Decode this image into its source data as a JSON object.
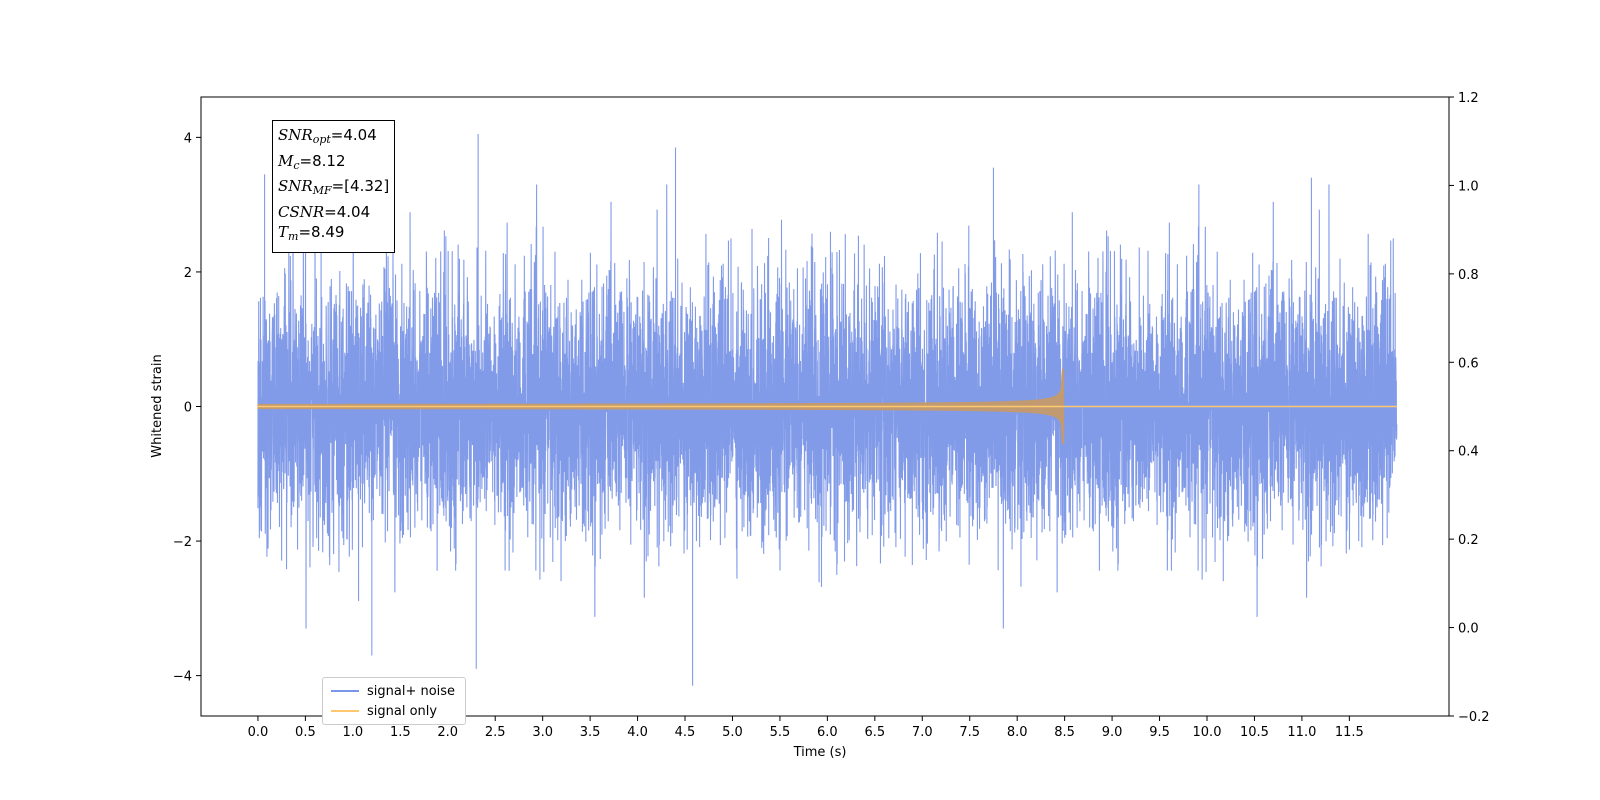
{
  "chart_data": {
    "type": "line",
    "title": "",
    "xlabel": "Time (s)",
    "ylabel": "Whitened strain",
    "xlim": [
      -0.6,
      12.55
    ],
    "ylim": [
      -4.6,
      4.6
    ],
    "y2lim": [
      -0.2,
      1.2
    ],
    "xticks": [
      "0.0",
      "0.5",
      "1.0",
      "1.5",
      "2.0",
      "2.5",
      "3.0",
      "3.5",
      "4.0",
      "4.5",
      "5.0",
      "5.5",
      "6.0",
      "6.5",
      "7.0",
      "7.5",
      "8.0",
      "8.5",
      "9.0",
      "9.5",
      "10.0",
      "10.5",
      "11.0",
      "11.5"
    ],
    "yticks": [
      "4",
      "2",
      "0",
      "−2",
      "−4"
    ],
    "y2ticks": [
      "1.2",
      "1.0",
      "0.8",
      "0.6",
      "0.4",
      "0.2",
      "0.0",
      "−0.2"
    ],
    "grid": false,
    "legend_position": "lower-left",
    "series": [
      {
        "name": "signal+ noise",
        "color": "#7b96e8",
        "description_range": [
          0,
          12
        ],
        "approx_std": 0.92,
        "notable_peaks": [
          {
            "x": 0.07,
            "y": 3.45
          },
          {
            "x": 2.32,
            "y": 4.05
          },
          {
            "x": 4.4,
            "y": 3.85
          },
          {
            "x": 4.58,
            "y": -4.15
          },
          {
            "x": 1.2,
            "y": -3.7
          },
          {
            "x": 2.3,
            "y": -3.9
          },
          {
            "x": 7.75,
            "y": 3.55
          },
          {
            "x": 11.1,
            "y": 3.4
          }
        ]
      },
      {
        "name": "signal only",
        "color": "#ffc86e",
        "chirp_start": 0,
        "chirp_end": 8.49,
        "peak_amplitude": 0.55
      }
    ]
  },
  "annotation": {
    "snr_opt_sym": "SNR",
    "snr_opt_sub": "opt",
    "snr_opt_val": "=4.04",
    "mc_sym": "M",
    "mc_sub": "c",
    "mc_val": "=8.12",
    "snr_mf_sym": "SNR",
    "snr_mf_sub": "MF",
    "snr_mf_val": "=[4.32]",
    "csnr_sym": "CSNR",
    "csnr_val": "=4.04",
    "tm_sym": "T",
    "tm_sub": "m",
    "tm_val": "=8.49"
  }
}
